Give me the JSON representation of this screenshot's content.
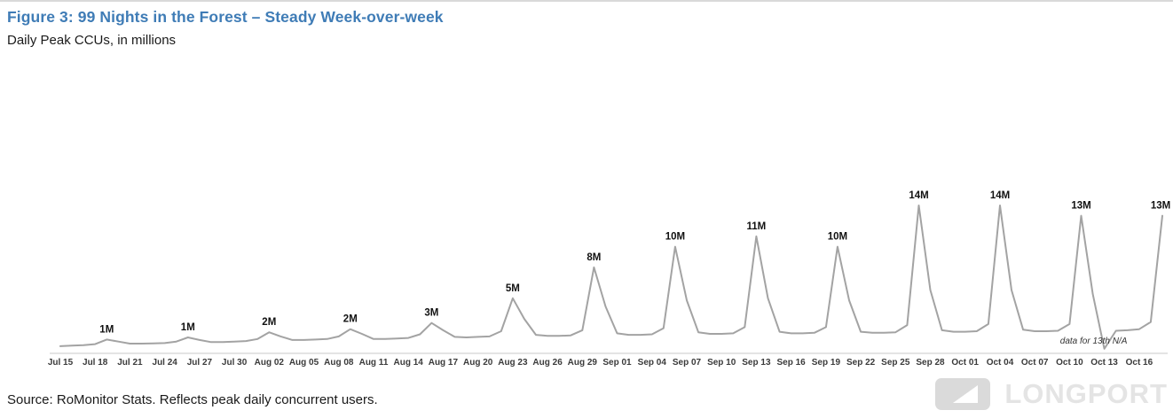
{
  "header": {
    "title": "Figure 3: 99 Nights in the Forest – Steady Week-over-week",
    "subtitle": "Daily Peak CCUs, in millions"
  },
  "footer": {
    "source": "Source: RoMonitor Stats. Reflects peak daily concurrent users.",
    "watermark": "LONGPORT"
  },
  "colors": {
    "title": "#3f7cb6",
    "line": "#a3a3a3",
    "axis": "#c9c9c9",
    "tick_text": "#3a3a3a",
    "peak_text": "#111111",
    "annotation_text": "#333333",
    "watermark": "#e4e4e4"
  },
  "chart_data": {
    "type": "line",
    "title": "99 Nights in the Forest – Steady Week-over-week",
    "subtitle": "Daily Peak CCUs, in millions",
    "xlabel": "",
    "ylabel": "Daily Peak CCUs (millions)",
    "ylim": [
      0,
      14
    ],
    "grid": false,
    "legend": "none",
    "start_date": "Jul 15",
    "end_date": "Oct 18",
    "tick_every_days": 3,
    "tick_labels": [
      "Jul 15",
      "Jul 18",
      "Jul 21",
      "Jul 24",
      "Jul 27",
      "Jul 30",
      "Aug 02",
      "Aug 05",
      "Aug 08",
      "Aug 11",
      "Aug 14",
      "Aug 17",
      "Aug 20",
      "Aug 23",
      "Aug 26",
      "Aug 29",
      "Sep 01",
      "Sep 04",
      "Sep 07",
      "Sep 10",
      "Sep 13",
      "Sep 16",
      "Sep 19",
      "Sep 22",
      "Sep 25",
      "Sep 28",
      "Oct 01",
      "Oct 04",
      "Oct 07",
      "Oct 10",
      "Oct 13",
      "Oct 16"
    ],
    "values": [
      0.35,
      0.4,
      0.45,
      0.55,
      1.0,
      0.8,
      0.6,
      0.6,
      0.62,
      0.65,
      0.8,
      1.2,
      0.95,
      0.75,
      0.75,
      0.8,
      0.85,
      1.05,
      1.7,
      1.3,
      0.95,
      0.95,
      1.0,
      1.05,
      1.3,
      2.0,
      1.55,
      1.05,
      1.05,
      1.1,
      1.15,
      1.5,
      2.6,
      1.9,
      1.25,
      1.2,
      1.25,
      1.3,
      1.8,
      5.0,
      3.0,
      1.45,
      1.35,
      1.35,
      1.4,
      1.9,
      8.0,
      4.2,
      1.6,
      1.45,
      1.45,
      1.5,
      2.1,
      10.0,
      4.8,
      1.7,
      1.55,
      1.55,
      1.6,
      2.2,
      11.0,
      5.0,
      1.75,
      1.6,
      1.6,
      1.65,
      2.2,
      10.0,
      4.8,
      1.75,
      1.65,
      1.65,
      1.7,
      2.4,
      14.0,
      5.8,
      1.9,
      1.75,
      1.75,
      1.8,
      2.5,
      14.0,
      5.8,
      1.95,
      1.8,
      1.8,
      1.85,
      2.5,
      13.0,
      5.4,
      0.1,
      1.85,
      1.9,
      2.0,
      2.7,
      13.0
    ],
    "peaks": [
      {
        "index": 4,
        "label": "1M"
      },
      {
        "index": 11,
        "label": "1M"
      },
      {
        "index": 18,
        "label": "2M"
      },
      {
        "index": 25,
        "label": "2M"
      },
      {
        "index": 32,
        "label": "3M"
      },
      {
        "index": 39,
        "label": "5M"
      },
      {
        "index": 46,
        "label": "8M"
      },
      {
        "index": 53,
        "label": "10M"
      },
      {
        "index": 60,
        "label": "11M"
      },
      {
        "index": 67,
        "label": "10M"
      },
      {
        "index": 74,
        "label": "14M"
      },
      {
        "index": 81,
        "label": "14M"
      },
      {
        "index": 88,
        "label": "13M"
      },
      {
        "index": 95,
        "label": "13M"
      }
    ],
    "annotation": {
      "index": 90,
      "text": "data for 13th N/A"
    }
  }
}
